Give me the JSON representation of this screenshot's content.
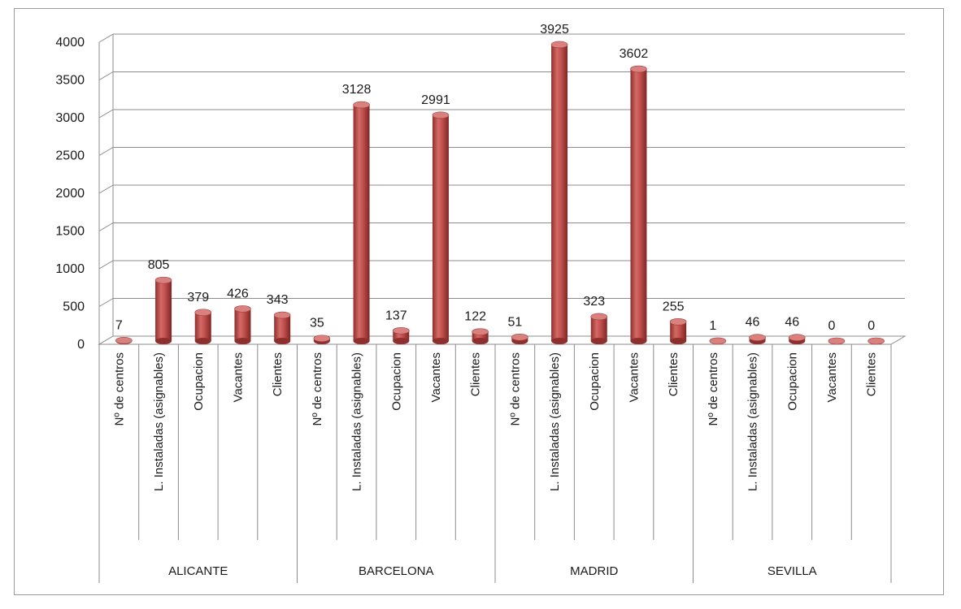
{
  "chart_data": {
    "type": "bar",
    "style": "3d-cylinder",
    "bar_color": "#c0504d",
    "grid": true,
    "ylim": [
      0,
      4000
    ],
    "yticks": [
      0,
      500,
      1000,
      1500,
      2000,
      2500,
      3000,
      3500,
      4000
    ],
    "groups": [
      {
        "name": "ALICANTE",
        "categories": [
          "Nº de centros",
          "L. Instaladas (asignables)",
          "Ocupacion",
          "Vacantes",
          "Clientes"
        ],
        "values": [
          7,
          805,
          379,
          426,
          343
        ]
      },
      {
        "name": "BARCELONA",
        "categories": [
          "Nº de centros",
          "L. Instaladas (asignables)",
          "Ocupacion",
          "Vacantes",
          "Clientes"
        ],
        "values": [
          35,
          3128,
          137,
          2991,
          122
        ]
      },
      {
        "name": "MADRID",
        "categories": [
          "Nº de centros",
          "L. Instaladas (asignables)",
          "Ocupacion",
          "Vacantes",
          "Clientes"
        ],
        "values": [
          51,
          3925,
          323,
          3602,
          255
        ]
      },
      {
        "name": "SEVILLA",
        "categories": [
          "Nº de centros",
          "L. Instaladas (asignables)",
          "Ocupacion",
          "Vacantes",
          "Clientes"
        ],
        "values": [
          1,
          46,
          46,
          0,
          0
        ]
      }
    ]
  }
}
